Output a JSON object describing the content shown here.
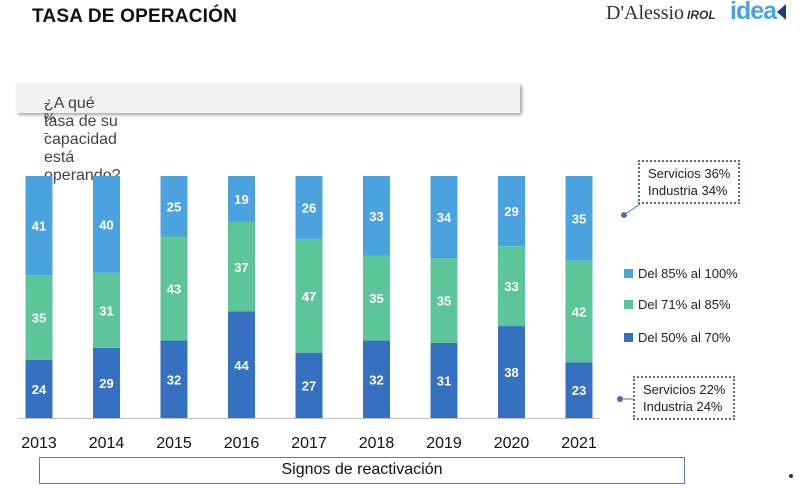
{
  "header": {
    "title": "TASA DE OPERACIÓN",
    "logo_dalessio": "D'Alessio",
    "logo_irol": "IROL",
    "logo_idea": "IDEA"
  },
  "question": {
    "text": "¿A qué tasa de su capacidad está operando?",
    "suffix": " - % -"
  },
  "callouts": {
    "top": {
      "line1": "Servicios 36%",
      "line2": "Industria 34%"
    },
    "bottom": {
      "line1": "Servicios 22%",
      "line2": "Industria 24%"
    }
  },
  "footer": {
    "label": "Signos de reactivación"
  },
  "colors": {
    "high": "#4aa3df",
    "mid": "#5dc59a",
    "low": "#3571c0"
  },
  "chart_data": {
    "type": "bar",
    "stacked": true,
    "title": "¿A qué tasa de su capacidad está operando? - % -",
    "xlabel": "",
    "ylabel": "",
    "ylim": [
      0,
      100
    ],
    "grid": false,
    "legend_position": "right",
    "categories": [
      "2013",
      "2014",
      "2015",
      "2016",
      "2017",
      "2018",
      "2019",
      "2020",
      "2021"
    ],
    "series": [
      {
        "name": "Del 50% al 70%",
        "color": "#3571c0",
        "values": [
          24,
          29,
          32,
          44,
          27,
          32,
          31,
          38,
          23
        ]
      },
      {
        "name": "Del 71% al 85%",
        "color": "#5dc59a",
        "values": [
          35,
          31,
          43,
          37,
          47,
          35,
          35,
          33,
          42
        ]
      },
      {
        "name": "Del 85% al 100%",
        "color": "#4aa3df",
        "values": [
          41,
          40,
          25,
          19,
          26,
          33,
          34,
          29,
          35
        ]
      }
    ]
  }
}
